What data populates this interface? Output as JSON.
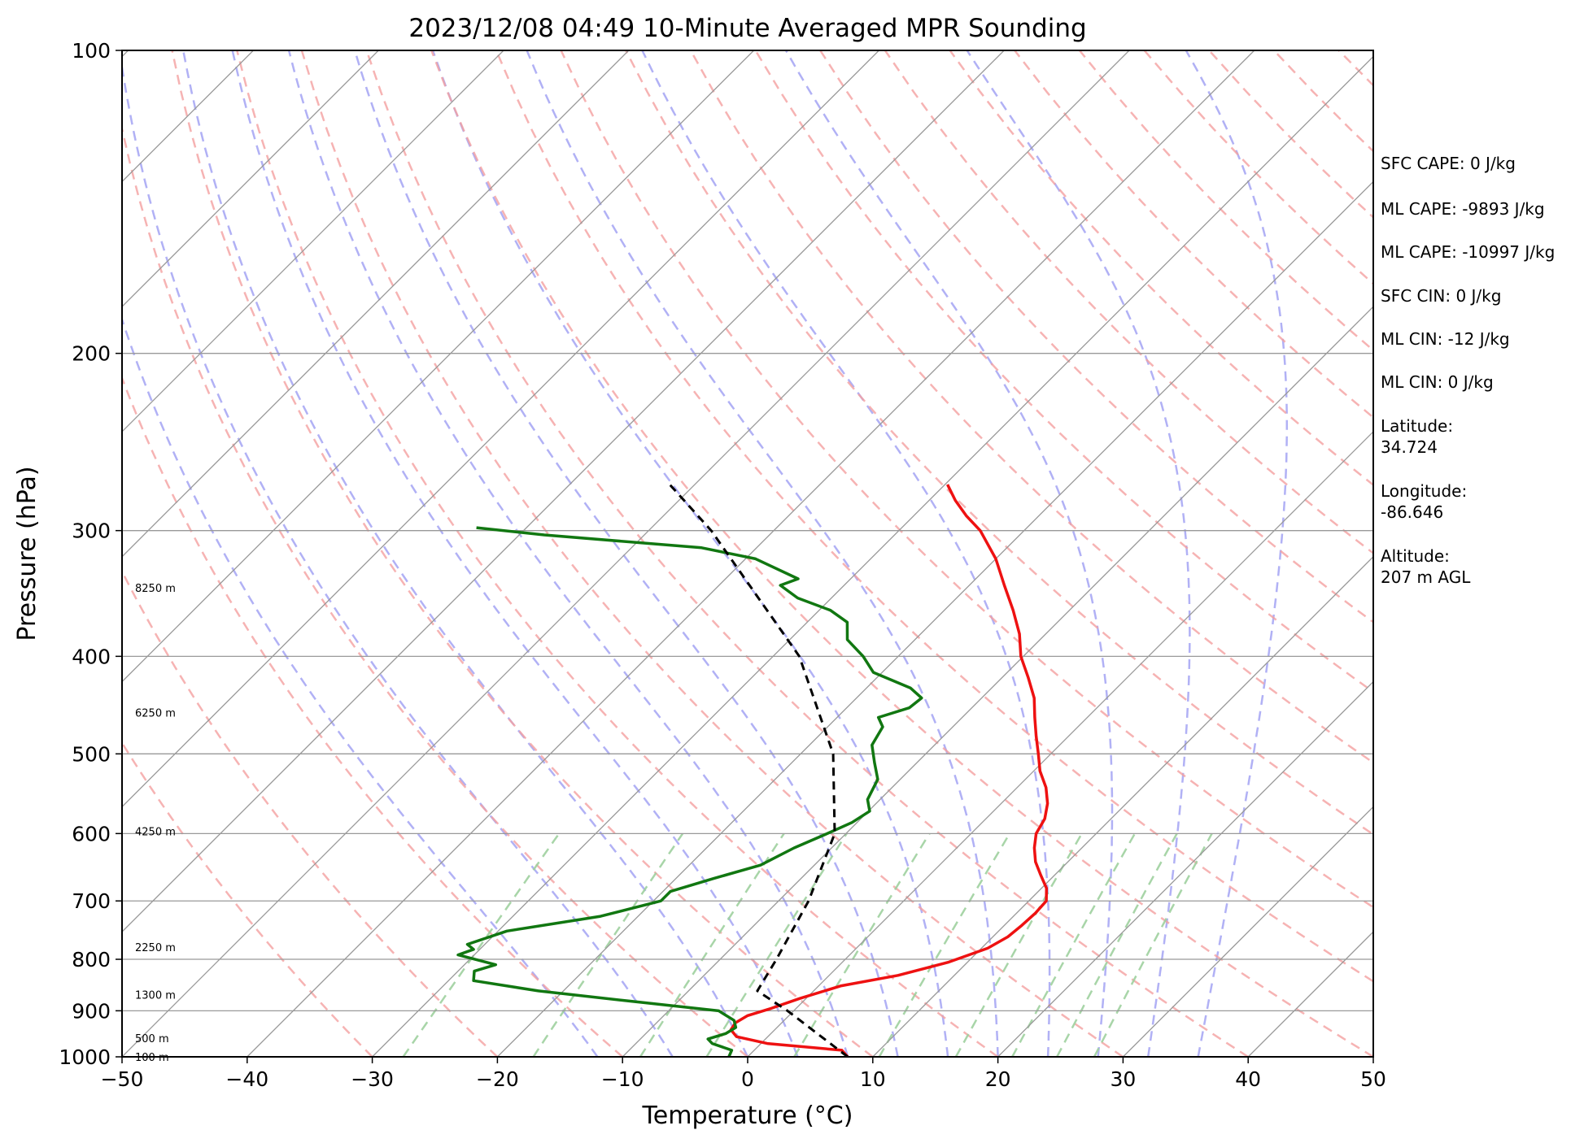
{
  "chart_data": {
    "type": "line",
    "title": "2023/12/08 04:49 10-Minute Averaged MPR Sounding",
    "xlabel": "Temperature (°C)",
    "ylabel": "Pressure (hPa)",
    "xlim": [
      -50,
      50
    ],
    "ylim": [
      1000,
      100
    ],
    "y_scale": "log",
    "grid": true,
    "skew_t": true,
    "x_ticks": [
      "−50",
      "−40",
      "−30",
      "−20",
      "−10",
      "0",
      "10",
      "20",
      "30",
      "40",
      "50"
    ],
    "y_ticks": [
      "100",
      "200",
      "300",
      "400",
      "500",
      "600",
      "700",
      "800",
      "900",
      "1000"
    ],
    "background_lines": {
      "isotherms_color": "#999999",
      "dry_adiabats_color": "#f4a0a0",
      "moist_adiabats_color": "#a8a8f4",
      "mixing_ratio_color": "#9fd09f"
    },
    "series": [
      {
        "color": "#ee1111",
        "points": [
          {
            "p": 1000,
            "t": 8.0
          },
          {
            "p": 985,
            "t": 7.0
          },
          {
            "p": 970,
            "t": 0.5
          },
          {
            "p": 955,
            "t": -2.5
          },
          {
            "p": 940,
            "t": -3.5
          },
          {
            "p": 925,
            "t": -3.7
          },
          {
            "p": 910,
            "t": -3.3
          },
          {
            "p": 895,
            "t": -2.0
          },
          {
            "p": 875,
            "t": -0.5
          },
          {
            "p": 850,
            "t": 1.8
          },
          {
            "p": 830,
            "t": 5.5
          },
          {
            "p": 805,
            "t": 8.5
          },
          {
            "p": 780,
            "t": 10.5
          },
          {
            "p": 760,
            "t": 11.2
          },
          {
            "p": 740,
            "t": 11.4
          },
          {
            "p": 720,
            "t": 11.5
          },
          {
            "p": 700,
            "t": 11.4
          },
          {
            "p": 680,
            "t": 10.4
          },
          {
            "p": 660,
            "t": 8.9
          },
          {
            "p": 640,
            "t": 7.4
          },
          {
            "p": 620,
            "t": 6.2
          },
          {
            "p": 600,
            "t": 5.2
          },
          {
            "p": 580,
            "t": 4.7
          },
          {
            "p": 560,
            "t": 3.7
          },
          {
            "p": 540,
            "t": 2.3
          },
          {
            "p": 520,
            "t": 0.5
          },
          {
            "p": 500,
            "t": -1.0
          },
          {
            "p": 480,
            "t": -2.6
          },
          {
            "p": 460,
            "t": -4.2
          },
          {
            "p": 440,
            "t": -5.8
          },
          {
            "p": 420,
            "t": -7.9
          },
          {
            "p": 400,
            "t": -10.2
          },
          {
            "p": 380,
            "t": -12.1
          },
          {
            "p": 360,
            "t": -14.5
          },
          {
            "p": 340,
            "t": -17.2
          },
          {
            "p": 320,
            "t": -20.0
          },
          {
            "p": 300,
            "t": -23.5
          },
          {
            "p": 290,
            "t": -25.8
          },
          {
            "p": 280,
            "t": -27.9
          },
          {
            "p": 270,
            "t": -29.8
          }
        ]
      },
      {
        "color": "#117711",
        "points": [
          {
            "p": 1000,
            "t": -1.5
          },
          {
            "p": 985,
            "t": -1.8
          },
          {
            "p": 970,
            "t": -3.9
          },
          {
            "p": 960,
            "t": -4.6
          },
          {
            "p": 948,
            "t": -3.6
          },
          {
            "p": 935,
            "t": -3.3
          },
          {
            "p": 920,
            "t": -4.0
          },
          {
            "p": 900,
            "t": -6.0
          },
          {
            "p": 880,
            "t": -14.0
          },
          {
            "p": 860,
            "t": -22.0
          },
          {
            "p": 840,
            "t": -28.0
          },
          {
            "p": 822,
            "t": -28.7
          },
          {
            "p": 810,
            "t": -27.5
          },
          {
            "p": 792,
            "t": -31.3
          },
          {
            "p": 782,
            "t": -30.5
          },
          {
            "p": 773,
            "t": -31.4
          },
          {
            "p": 750,
            "t": -29.3
          },
          {
            "p": 725,
            "t": -23.0
          },
          {
            "p": 700,
            "t": -19.4
          },
          {
            "p": 685,
            "t": -19.4
          },
          {
            "p": 665,
            "t": -17.0
          },
          {
            "p": 645,
            "t": -14.3
          },
          {
            "p": 620,
            "t": -13.0
          },
          {
            "p": 600,
            "t": -11.5
          },
          {
            "p": 585,
            "t": -10.4
          },
          {
            "p": 570,
            "t": -9.9
          },
          {
            "p": 555,
            "t": -11.0
          },
          {
            "p": 530,
            "t": -11.8
          },
          {
            "p": 510,
            "t": -13.4
          },
          {
            "p": 490,
            "t": -15.0
          },
          {
            "p": 470,
            "t": -15.6
          },
          {
            "p": 460,
            "t": -16.7
          },
          {
            "p": 450,
            "t": -15.0
          },
          {
            "p": 440,
            "t": -14.8
          },
          {
            "p": 430,
            "t": -16.5
          },
          {
            "p": 415,
            "t": -20.7
          },
          {
            "p": 400,
            "t": -22.8
          },
          {
            "p": 385,
            "t": -25.4
          },
          {
            "p": 370,
            "t": -26.8
          },
          {
            "p": 360,
            "t": -29.1
          },
          {
            "p": 350,
            "t": -32.7
          },
          {
            "p": 340,
            "t": -35.1
          },
          {
            "p": 335,
            "t": -34.2
          },
          {
            "p": 320,
            "t": -39.2
          },
          {
            "p": 312,
            "t": -44.4
          },
          {
            "p": 303,
            "t": -58.0
          },
          {
            "p": 298,
            "t": -64.0
          }
        ]
      },
      {
        "color": "#000000",
        "dashed": true,
        "points": [
          {
            "p": 1000,
            "t": 8.0
          },
          {
            "p": 900,
            "t": -0.5
          },
          {
            "p": 860,
            "t": -4.5
          },
          {
            "p": 800,
            "t": -5.5
          },
          {
            "p": 700,
            "t": -7.6
          },
          {
            "p": 600,
            "t": -10.9
          },
          {
            "p": 500,
            "t": -17.4
          },
          {
            "p": 400,
            "t": -27.9
          },
          {
            "p": 300,
            "t": -45.0
          },
          {
            "p": 270,
            "t": -52.0
          }
        ]
      }
    ],
    "height_labels": [
      {
        "p": 1000,
        "text": "100 m"
      },
      {
        "p": 958,
        "text": "500 m"
      },
      {
        "p": 867,
        "text": "1300 m"
      },
      {
        "p": 778,
        "text": "2250 m"
      },
      {
        "p": 597,
        "text": "4250 m"
      },
      {
        "p": 455,
        "text": "6250 m"
      },
      {
        "p": 342,
        "text": "8250 m"
      }
    ]
  },
  "info_panel": [
    "SFC CAPE: 0 J/kg",
    "ML CAPE: -9893 J/kg",
    "ML CAPE: -10997 J/kg",
    "SFC CIN: 0 J/kg",
    "ML CIN: -12 J/kg",
    "ML CIN: 0 J/kg",
    "Latitude:\n34.724",
    "Longitude:\n-86.646",
    "Altitude:\n207 m AGL"
  ]
}
